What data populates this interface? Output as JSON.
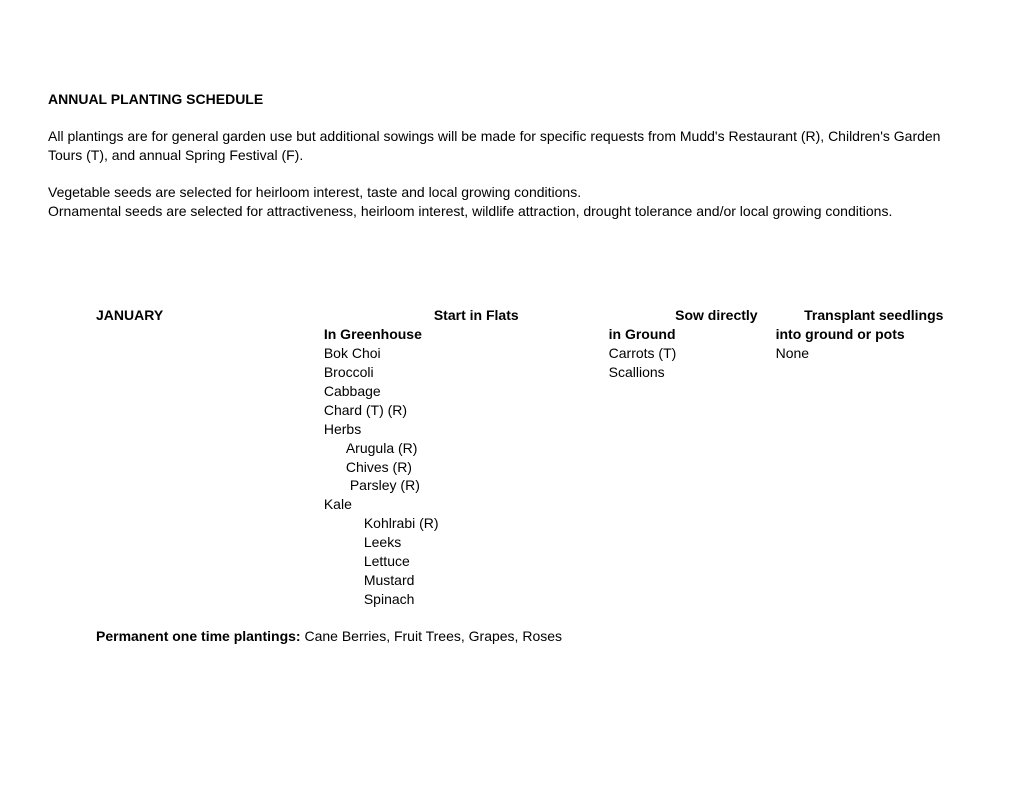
{
  "title": "ANNUAL PLANTING SCHEDULE",
  "intro_p1": "All plantings are for general garden use but additional sowings will be made for specific requests from Mudd's Restaurant (R), Children's Garden Tours (T), and annual Spring Festival (F).",
  "intro_p2": "Vegetable seeds are selected for heirloom interest, taste and local growing conditions.",
  "intro_p3": "Ornamental seeds are selected for attractiveness, heirloom interest, wildlife attraction, drought tolerance and/or local growing conditions.",
  "month": "JANUARY",
  "col2_h1": "Start in Flats",
  "col2_h2": "In Greenhouse",
  "col3_h1": "Sow directly",
  "col3_h2": "in Ground",
  "col4_h1": "Transplant seedlings",
  "col4_h2": "into ground or pots",
  "greenhouse": {
    "r0": "Bok Choi",
    "r1": "Broccoli",
    "r2": "Cabbage",
    "r3": "Chard (T) (R)",
    "r4": "Herbs",
    "r5": "Arugula (R)",
    "r6": "Chives (R)",
    "r7": "Parsley (R)",
    "r8": "Kale",
    "r9": "Kohlrabi (R)",
    "r10": "Leeks",
    "r11": "Lettuce",
    "r12": "Mustard",
    "r13": "Spinach"
  },
  "ground": {
    "r0": "Carrots (T)",
    "r1": "Scallions"
  },
  "transplant": {
    "r0": "None"
  },
  "permanent_label": "Permanent one time plantings:  ",
  "permanent_value": "Cane Berries, Fruit Trees, Grapes, Roses"
}
